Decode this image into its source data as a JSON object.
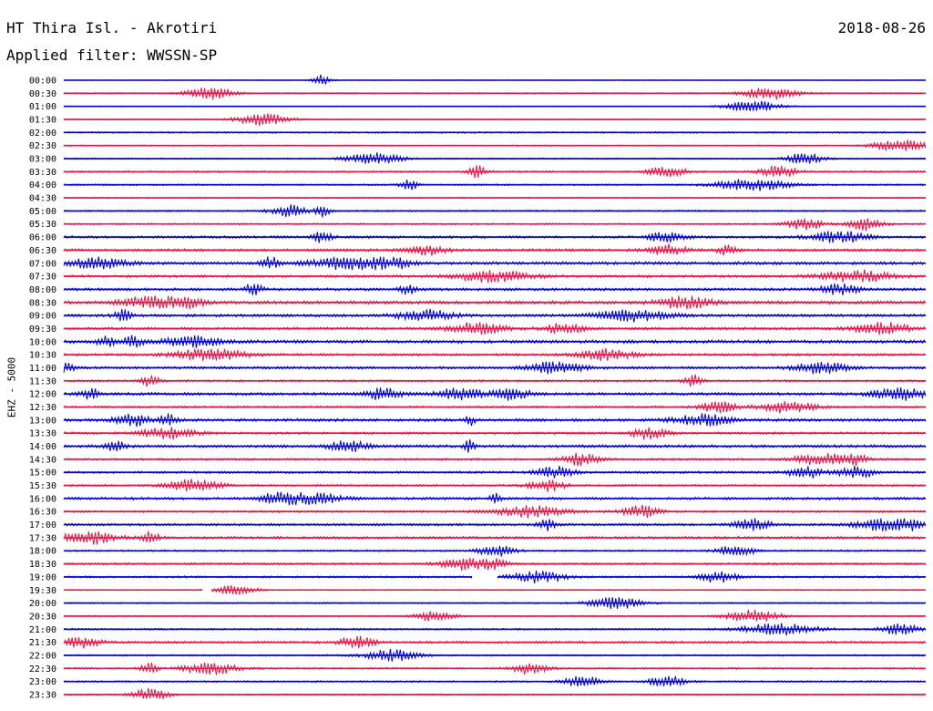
{
  "header": {
    "station": "HT Thira Isl. - Akrotiri",
    "date": "2018-08-26",
    "filter": "Applied filter: WWSSN-SP"
  },
  "chart_data": {
    "type": "line",
    "title": "HT Thira Isl. - Akrotiri",
    "ylabel": "EHZ - 5000",
    "trace_colors": [
      "#0000dd",
      "#ee1144"
    ],
    "rows": [
      {
        "label": "00:00",
        "amp": 0.4,
        "events": [
          [
            0.3,
            0.01
          ]
        ]
      },
      {
        "label": "00:30",
        "amp": 0.8,
        "events": [
          [
            0.17,
            0.025
          ],
          [
            0.82,
            0.03
          ]
        ]
      },
      {
        "label": "01:00",
        "amp": 0.5,
        "events": [
          [
            0.8,
            0.03
          ]
        ]
      },
      {
        "label": "01:30",
        "amp": 0.6,
        "events": [
          [
            0.23,
            0.03
          ]
        ]
      },
      {
        "label": "02:00",
        "amp": 0.9,
        "events": []
      },
      {
        "label": "02:30",
        "amp": 0.7,
        "events": [
          [
            0.97,
            0.03
          ]
        ]
      },
      {
        "label": "03:00",
        "amp": 0.8,
        "events": [
          [
            0.36,
            0.03
          ],
          [
            0.86,
            0.02
          ]
        ]
      },
      {
        "label": "03:30",
        "amp": 1.0,
        "events": [
          [
            0.7,
            0.02
          ],
          [
            0.83,
            0.02
          ],
          [
            0.48,
            0.01
          ]
        ]
      },
      {
        "label": "04:00",
        "amp": 0.9,
        "events": [
          [
            0.4,
            0.01
          ],
          [
            0.8,
            0.04
          ]
        ]
      },
      {
        "label": "04:30",
        "amp": 0.7,
        "events": []
      },
      {
        "label": "05:00",
        "amp": 0.9,
        "events": [
          [
            0.26,
            0.02
          ],
          [
            0.3,
            0.008
          ]
        ]
      },
      {
        "label": "05:30",
        "amp": 0.9,
        "events": [
          [
            0.86,
            0.02
          ],
          [
            0.93,
            0.02
          ]
        ]
      },
      {
        "label": "06:00",
        "amp": 1.4,
        "events": [
          [
            0.3,
            0.01
          ],
          [
            0.7,
            0.02
          ],
          [
            0.9,
            0.03
          ]
        ]
      },
      {
        "label": "06:30",
        "amp": 1.5,
        "events": [
          [
            0.42,
            0.02
          ],
          [
            0.77,
            0.01
          ],
          [
            0.7,
            0.02
          ]
        ]
      },
      {
        "label": "07:00",
        "amp": 1.7,
        "events": [
          [
            0.04,
            0.03
          ],
          [
            0.24,
            0.01
          ],
          [
            0.33,
            0.04
          ],
          [
            0.38,
            0.02
          ]
        ]
      },
      {
        "label": "07:30",
        "amp": 1.4,
        "events": [
          [
            0.5,
            0.04
          ],
          [
            0.92,
            0.04
          ]
        ]
      },
      {
        "label": "08:00",
        "amp": 1.5,
        "events": [
          [
            0.22,
            0.01
          ],
          [
            0.4,
            0.01
          ],
          [
            0.9,
            0.02
          ]
        ]
      },
      {
        "label": "08:30",
        "amp": 1.8,
        "events": [
          [
            0.1,
            0.03
          ],
          [
            0.14,
            0.02
          ],
          [
            0.72,
            0.03
          ]
        ]
      },
      {
        "label": "09:00",
        "amp": 1.6,
        "events": [
          [
            0.07,
            0.01
          ],
          [
            0.42,
            0.03
          ],
          [
            0.66,
            0.04
          ]
        ]
      },
      {
        "label": "09:30",
        "amp": 1.5,
        "events": [
          [
            0.48,
            0.03
          ],
          [
            0.58,
            0.02
          ],
          [
            0.95,
            0.03
          ]
        ]
      },
      {
        "label": "10:00",
        "amp": 1.8,
        "events": [
          [
            0.05,
            0.01
          ],
          [
            0.08,
            0.01
          ],
          [
            0.15,
            0.03
          ]
        ]
      },
      {
        "label": "10:30",
        "amp": 1.4,
        "events": [
          [
            0.17,
            0.04
          ],
          [
            0.63,
            0.03
          ]
        ]
      },
      {
        "label": "11:00",
        "amp": 1.4,
        "events": [
          [
            0.0,
            0.01
          ],
          [
            0.57,
            0.03
          ],
          [
            0.88,
            0.03
          ]
        ]
      },
      {
        "label": "11:30",
        "amp": 1.2,
        "events": [
          [
            0.1,
            0.01
          ],
          [
            0.73,
            0.01
          ]
        ]
      },
      {
        "label": "12:00",
        "amp": 1.6,
        "events": [
          [
            0.03,
            0.01
          ],
          [
            0.37,
            0.02
          ],
          [
            0.46,
            0.025
          ],
          [
            0.52,
            0.02
          ],
          [
            0.97,
            0.03
          ]
        ]
      },
      {
        "label": "12:30",
        "amp": 1.2,
        "events": [
          [
            0.76,
            0.02
          ],
          [
            0.84,
            0.03
          ]
        ]
      },
      {
        "label": "13:00",
        "amp": 1.6,
        "events": [
          [
            0.08,
            0.02
          ],
          [
            0.12,
            0.01
          ],
          [
            0.47,
            0.006
          ],
          [
            0.74,
            0.03
          ]
        ]
      },
      {
        "label": "13:30",
        "amp": 1.3,
        "events": [
          [
            0.12,
            0.03
          ],
          [
            0.68,
            0.02
          ]
        ]
      },
      {
        "label": "14:00",
        "amp": 1.6,
        "events": [
          [
            0.06,
            0.01
          ],
          [
            0.33,
            0.02
          ],
          [
            0.47,
            0.006
          ]
        ]
      },
      {
        "label": "14:30",
        "amp": 1.2,
        "events": [
          [
            0.6,
            0.02
          ],
          [
            0.88,
            0.03
          ],
          [
            0.92,
            0.01
          ]
        ]
      },
      {
        "label": "15:00",
        "amp": 1.3,
        "events": [
          [
            0.57,
            0.02
          ],
          [
            0.86,
            0.02
          ],
          [
            0.92,
            0.02
          ]
        ]
      },
      {
        "label": "15:30",
        "amp": 1.1,
        "events": [
          [
            0.15,
            0.03
          ],
          [
            0.56,
            0.02
          ]
        ]
      },
      {
        "label": "16:00",
        "amp": 1.5,
        "events": [
          [
            0.25,
            0.02
          ],
          [
            0.29,
            0.03
          ],
          [
            0.5,
            0.006
          ]
        ]
      },
      {
        "label": "16:30",
        "amp": 1.2,
        "events": [
          [
            0.54,
            0.04
          ],
          [
            0.67,
            0.02
          ]
        ]
      },
      {
        "label": "17:00",
        "amp": 1.3,
        "events": [
          [
            0.56,
            0.01
          ],
          [
            0.8,
            0.02
          ],
          [
            0.95,
            0.03
          ],
          [
            0.98,
            0.02
          ]
        ]
      },
      {
        "label": "17:30",
        "amp": 1.5,
        "events": [
          [
            0.03,
            0.03
          ],
          [
            0.1,
            0.01
          ]
        ]
      },
      {
        "label": "18:00",
        "amp": 1.0,
        "events": [
          [
            0.5,
            0.02
          ],
          [
            0.78,
            0.02
          ]
        ]
      },
      {
        "label": "18:30",
        "amp": 1.2,
        "events": [
          [
            0.47,
            0.03
          ],
          [
            0.5,
            0.01
          ]
        ]
      },
      {
        "label": "19:00",
        "amp": 1.1,
        "events": [
          [
            0.55,
            0.03
          ],
          [
            0.76,
            0.02
          ]
        ]
      },
      {
        "label": "19:30",
        "amp": 0.7,
        "events": [
          [
            0.2,
            0.02
          ]
        ]
      },
      {
        "label": "20:00",
        "amp": 0.8,
        "events": [
          [
            0.64,
            0.03
          ]
        ]
      },
      {
        "label": "20:30",
        "amp": 0.8,
        "events": [
          [
            0.43,
            0.02
          ],
          [
            0.8,
            0.03
          ]
        ]
      },
      {
        "label": "21:00",
        "amp": 1.0,
        "events": [
          [
            0.83,
            0.04
          ],
          [
            0.97,
            0.02
          ]
        ]
      },
      {
        "label": "21:30",
        "amp": 1.3,
        "events": [
          [
            0.02,
            0.02
          ],
          [
            0.34,
            0.02
          ]
        ]
      },
      {
        "label": "22:00",
        "amp": 0.9,
        "events": [
          [
            0.38,
            0.03
          ]
        ]
      },
      {
        "label": "22:30",
        "amp": 1.0,
        "events": [
          [
            0.1,
            0.01
          ],
          [
            0.17,
            0.03
          ],
          [
            0.54,
            0.02
          ]
        ]
      },
      {
        "label": "23:00",
        "amp": 0.9,
        "events": [
          [
            0.6,
            0.02
          ],
          [
            0.7,
            0.02
          ]
        ]
      },
      {
        "label": "23:30",
        "amp": 0.9,
        "events": [
          [
            0.1,
            0.02
          ]
        ]
      }
    ]
  }
}
